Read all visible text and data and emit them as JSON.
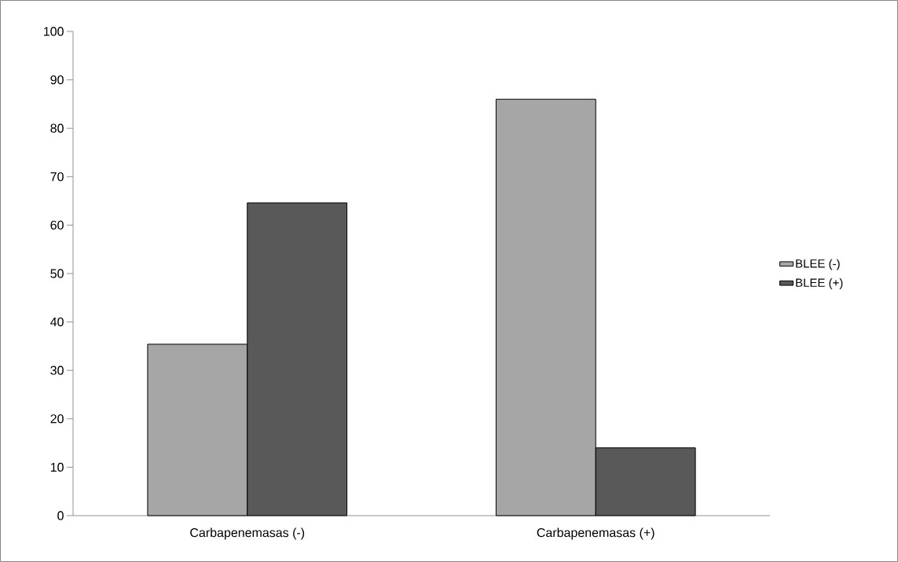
{
  "chart_data": {
    "type": "bar",
    "categories": [
      "Carbapenemasas (-)",
      "Carbapenemasas (+)"
    ],
    "series": [
      {
        "name": "BLEE (-)",
        "color": "#a6a6a6",
        "values": [
          35.4,
          86
        ]
      },
      {
        "name": "BLEE (+)",
        "color": "#595959",
        "values": [
          64.6,
          14
        ]
      }
    ],
    "ylim": [
      0,
      100
    ],
    "yticks": [
      0,
      10,
      20,
      30,
      40,
      50,
      60,
      70,
      80,
      90,
      100
    ],
    "grid": false,
    "legend": "right"
  }
}
